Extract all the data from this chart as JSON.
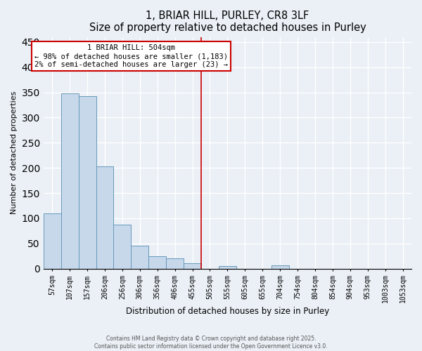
{
  "title": "1, BRIAR HILL, PURLEY, CR8 3LF",
  "subtitle": "Size of property relative to detached houses in Purley",
  "xlabel": "Distribution of detached houses by size in Purley",
  "ylabel": "Number of detached properties",
  "bar_labels": [
    "57sqm",
    "107sqm",
    "157sqm",
    "206sqm",
    "256sqm",
    "306sqm",
    "356sqm",
    "406sqm",
    "455sqm",
    "505sqm",
    "555sqm",
    "605sqm",
    "655sqm",
    "704sqm",
    "754sqm",
    "804sqm",
    "854sqm",
    "904sqm",
    "953sqm",
    "1003sqm",
    "1053sqm"
  ],
  "bar_values": [
    110,
    348,
    343,
    203,
    87,
    46,
    24,
    20,
    11,
    0,
    5,
    0,
    0,
    7,
    0,
    0,
    0,
    0,
    0,
    0,
    0
  ],
  "bar_color": "#c8d8eb",
  "bar_edge_color": "#6699bb",
  "vline_x": 9,
  "vline_color": "#cc0000",
  "annotation_title": "1 BRIAR HILL: 504sqm",
  "annotation_line1": "← 98% of detached houses are smaller (1,183)",
  "annotation_line2": "2% of semi-detached houses are larger (23) →",
  "annotation_box_color": "#ffffff",
  "annotation_box_edge": "#cc0000",
  "ylim": [
    0,
    460
  ],
  "yticks": [
    0,
    50,
    100,
    150,
    200,
    250,
    300,
    350,
    400,
    450
  ],
  "footer1": "Contains HM Land Registry data © Crown copyright and database right 2025.",
  "footer2": "Contains public sector information licensed under the Open Government Licence v3.0.",
  "bg_color": "#eaf0f6",
  "grid_color": "#ffffff"
}
